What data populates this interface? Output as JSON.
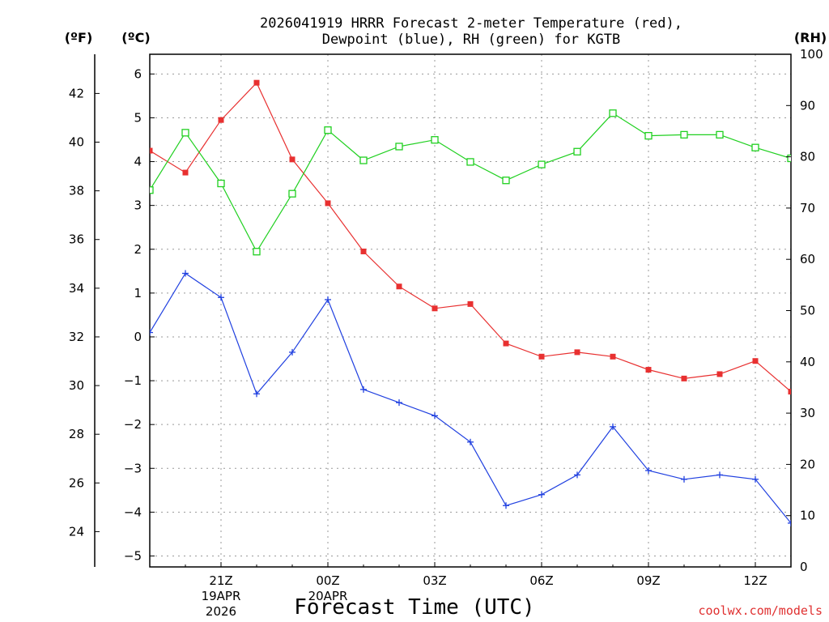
{
  "chart_data": {
    "type": "line",
    "title_lines": [
      "2026041919 HRRR Forecast 2-meter Temperature (red),",
      "Dewpoint (blue), RH (green) for KGTB"
    ],
    "units": {
      "fahrenheit": "(ºF)",
      "celsius": "(ºC)",
      "rh": "(RH)"
    },
    "xlabel": "Forecast Time (UTC)",
    "credit": "coolwx.com/models",
    "x_hours": [
      19,
      20,
      21,
      22,
      23,
      24,
      25,
      26,
      27,
      28,
      29,
      30,
      31,
      32,
      33,
      34,
      35,
      36,
      37
    ],
    "x_ticks": [
      {
        "hour": 21,
        "lines": [
          "21Z",
          "19APR",
          "2026"
        ]
      },
      {
        "hour": 24,
        "lines": [
          "00Z",
          "20APR"
        ]
      },
      {
        "hour": 27,
        "lines": [
          "03Z"
        ]
      },
      {
        "hour": 30,
        "lines": [
          "06Z"
        ]
      },
      {
        "hour": 33,
        "lines": [
          "09Z"
        ]
      },
      {
        "hour": 36,
        "lines": [
          "12Z"
        ]
      }
    ],
    "xlim": [
      19,
      37
    ],
    "celsius_axis": {
      "range": [
        -5.25,
        6.45
      ],
      "ticks": [
        -5,
        -4,
        -3,
        -2,
        -1,
        0,
        1,
        2,
        3,
        4,
        5,
        6
      ]
    },
    "fahrenheit_axis": {
      "ticks": [
        24,
        26,
        28,
        30,
        32,
        34,
        36,
        38,
        40,
        42
      ]
    },
    "rh_axis": {
      "range": [
        0,
        100
      ],
      "ticks": [
        0,
        10,
        20,
        30,
        40,
        50,
        60,
        70,
        80,
        90,
        100
      ]
    },
    "grid": true,
    "series": [
      {
        "name": "Temperature",
        "axis": "celsius",
        "color": "#e83030",
        "marker": "filled-square",
        "values": [
          4.25,
          3.75,
          4.95,
          5.8,
          4.05,
          3.05,
          1.95,
          1.15,
          0.65,
          0.75,
          -0.15,
          -0.45,
          -0.35,
          -0.45,
          -0.75,
          -0.95,
          -0.85,
          -0.55,
          -1.25
        ]
      },
      {
        "name": "Dewpoint",
        "axis": "celsius",
        "color": "#2040e0",
        "marker": "plus",
        "values": [
          0.1,
          1.45,
          0.9,
          -1.3,
          -0.35,
          0.85,
          -1.2,
          -1.5,
          -1.8,
          -2.4,
          -3.85,
          -3.6,
          -3.15,
          -2.05,
          -3.05,
          -3.25,
          -3.15,
          -3.25,
          -4.25
        ]
      },
      {
        "name": "RH",
        "axis": "rh",
        "color": "#20d020",
        "marker": "open-square",
        "values": [
          73.5,
          84.7,
          74.8,
          61.5,
          72.8,
          85.2,
          79.3,
          82.0,
          83.3,
          79.0,
          75.4,
          78.5,
          81.0,
          88.5,
          84.1,
          84.3,
          84.3,
          81.8,
          79.7
        ]
      }
    ]
  }
}
